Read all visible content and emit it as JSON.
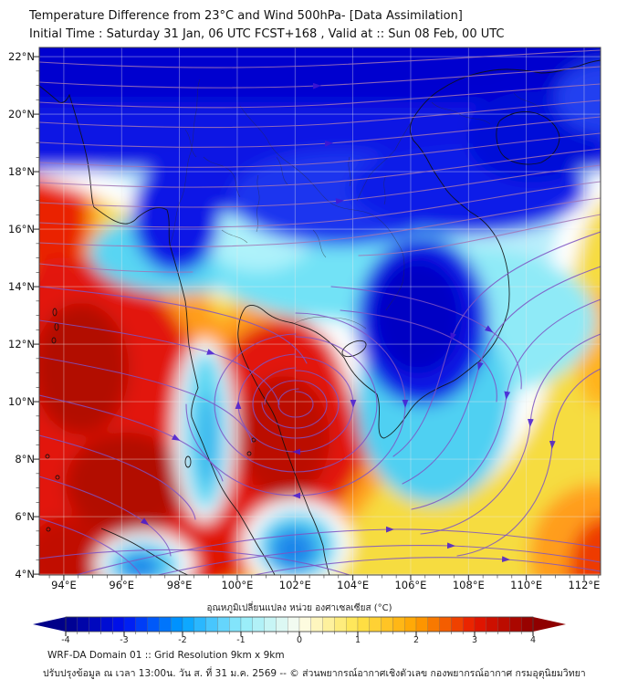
{
  "header": {
    "title_line1": "Temperature Difference from 23°C and Wind 500hPa- [Data Assimilation]",
    "title_line2": "Initial Time : Saturday 31 Jan, 06 UTC FCST+168 , Valid at ::  Sun 08 Feb, 00 UTC"
  },
  "axes": {
    "lat_ticks": [
      "22°N",
      "20°N",
      "18°N",
      "16°N",
      "14°N",
      "12°N",
      "10°N",
      "8°N",
      "6°N",
      "4°N"
    ],
    "lon_ticks": [
      "94°E",
      "96°E",
      "98°E",
      "100°E",
      "102°E",
      "104°E",
      "106°E",
      "108°E",
      "110°E",
      "112°E"
    ]
  },
  "colorbar": {
    "label": "อุณหภูมิเปลี่ยนแปลง หน่วย องศาเซลเซียส (°C)",
    "tick_labels": [
      "-4",
      "-3",
      "-2",
      "-1",
      "0",
      "1",
      "2",
      "3",
      "4"
    ],
    "anchor_colors": [
      "#000089",
      "#0012f2",
      "#00a0ff",
      "#90ecfa",
      "#fdfdf0",
      "#ffe44a",
      "#ffa300",
      "#e81700",
      "#8f0000"
    ]
  },
  "footer": {
    "line1": "WRF-DA Domain 01 :: Grid Resolution 9km x 9km",
    "line2": "ปรับปรุงข้อมูล ณ เวลา 13:00น. วัน ส. ที่ 31 ม.ค. 2569 -- © ส่วนพยากรณ์อากาศเชิงตัวเลข กองพยากรณ์อากาศ กรมอุตุนิยมวิทยา"
  },
  "chart_data": {
    "type": "heatmap",
    "title": "Temperature Difference from 23°C and Wind 500hPa- [Data Assimilation]",
    "subtitle": "Initial Time : Saturday 31 Jan, 06 UTC FCST+168 , Valid at :: Sun 08 Feb, 00 UTC",
    "x_axis": {
      "ticks_deg_E": [
        94,
        96,
        98,
        100,
        102,
        104,
        106,
        108,
        110,
        112
      ],
      "approx_range": [
        93.1,
        112.6
      ]
    },
    "y_axis": {
      "ticks_deg_N": [
        22,
        20,
        18,
        16,
        14,
        12,
        10,
        8,
        6,
        4
      ],
      "approx_range": [
        4,
        22.3
      ]
    },
    "value_scale": {
      "min": -4,
      "max": 4,
      "step_labeled": 1,
      "unit": "°C"
    },
    "wind_level": "500hPa",
    "features": [
      "Deep blue (-3 to -4 °C) band covering everything north of ~17°N: Myanmar, N. Thailand, Laos, N. Vietnam, S. China, Hainan",
      "Deep blue pocket (-3 to -4 °C) over S. Laos / S.-central Vietnam around 105-108°E, 11-15°N, ringed by cyan and white",
      "Large red area (+3 to +4 °C) over Andaman Sea / NW of Sumatra, ~93-97°E, 4-14°N, with darker red cores",
      "Red blob (+3 to +4 °C) on far-left edge ~93-94°E, 15-19°N surrounded by orange-yellow",
      "Central red blob (+3 to +4 °C) over Gulf of Thailand ~100-104°E, 6-12°N with clockwise wind spiral centered near 102°E, 10°N",
      "Yellow (+1 °C) across southern South China Sea, strengthening to orange-red near 112°E, 4-6°N and along right edge ~12°N",
      "Cyan/blue cool pockets (-1 to -2 °C): peninsula strip near 98.5°E 8-11°N, south Malay Peninsula ~102°E 5°N, N. Sumatra ~97°E 4°N",
      "Wind: westerlies streaming east across the north; flow descends the east side, turns west and spirals clockwise into the Gulf gyre; NE-ward flow in the far south"
    ]
  }
}
